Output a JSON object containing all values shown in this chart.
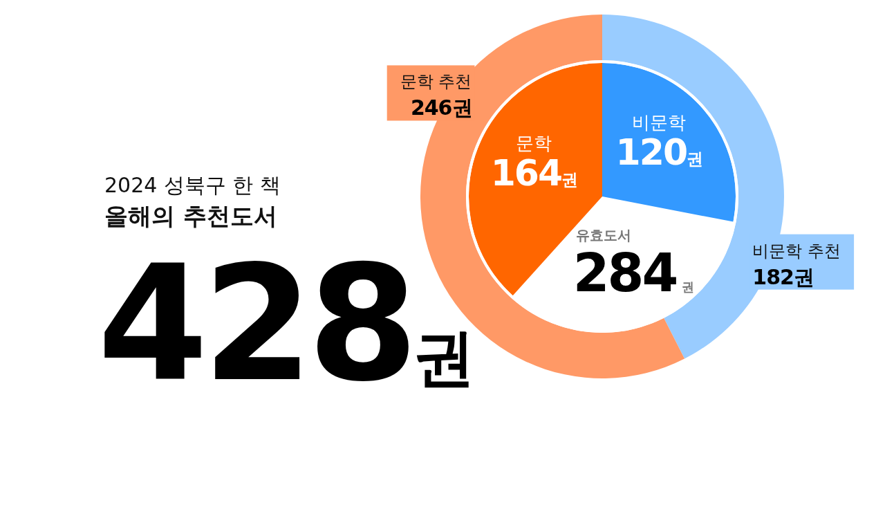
{
  "chart_data": [
    {
      "type": "donut",
      "title": "2024 성북구 한 책",
      "subtitle": "올해의 추천도서",
      "annotations": [
        "428권"
      ],
      "categories": [
        "비문학 추천",
        "문학 추천"
      ],
      "values": [
        182,
        246
      ],
      "colors": [
        "#99ccff",
        "#ff9966"
      ],
      "value_labels": [
        "182권",
        "246권"
      ]
    },
    {
      "type": "pie",
      "categories": [
        "비문학",
        "문학"
      ],
      "values": [
        120,
        164
      ],
      "colors": [
        "#3399ff",
        "#ff6600"
      ],
      "value_labels": [
        "120권",
        "164권"
      ],
      "annotations": [
        "유효도서 284권"
      ]
    }
  ]
}
